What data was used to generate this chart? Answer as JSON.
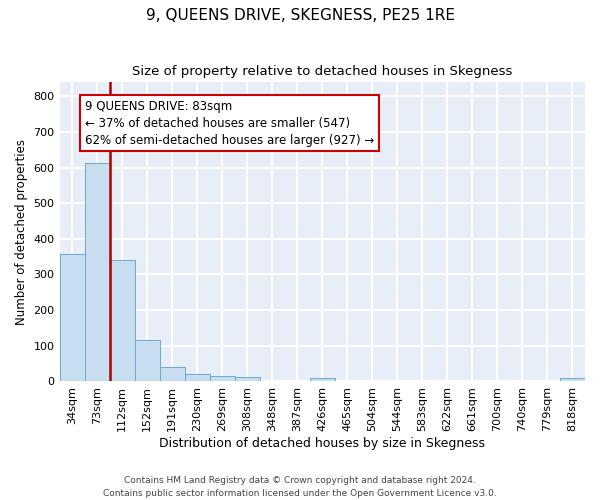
{
  "title": "9, QUEENS DRIVE, SKEGNESS, PE25 1RE",
  "subtitle": "Size of property relative to detached houses in Skegness",
  "xlabel": "Distribution of detached houses by size in Skegness",
  "ylabel": "Number of detached properties",
  "footer_line1": "Contains HM Land Registry data © Crown copyright and database right 2024.",
  "footer_line2": "Contains public sector information licensed under the Open Government Licence v3.0.",
  "bar_labels": [
    "34sqm",
    "73sqm",
    "112sqm",
    "152sqm",
    "191sqm",
    "230sqm",
    "269sqm",
    "308sqm",
    "348sqm",
    "387sqm",
    "426sqm",
    "465sqm",
    "504sqm",
    "544sqm",
    "583sqm",
    "622sqm",
    "661sqm",
    "700sqm",
    "740sqm",
    "779sqm",
    "818sqm"
  ],
  "bar_values": [
    358,
    612,
    342,
    115,
    40,
    22,
    16,
    13,
    0,
    0,
    9,
    0,
    0,
    0,
    0,
    0,
    0,
    0,
    0,
    0,
    9
  ],
  "bar_color": "#c9ddf0",
  "bar_edge_color": "#6aaad4",
  "background_color": "#e8eef8",
  "grid_color": "#ffffff",
  "annotation_line1": "9 QUEENS DRIVE: 83sqm",
  "annotation_line2": "← 37% of detached houses are smaller (547)",
  "annotation_line3": "62% of semi-detached houses are larger (927) →",
  "vline_color": "#aa0000",
  "annotation_box_color": "#ffffff",
  "annotation_box_edge": "#cc0000",
  "ylim": [
    0,
    840
  ],
  "yticks": [
    0,
    100,
    200,
    300,
    400,
    500,
    600,
    700,
    800
  ],
  "title_fontsize": 11,
  "subtitle_fontsize": 9.5,
  "xlabel_fontsize": 9,
  "ylabel_fontsize": 8.5,
  "tick_fontsize": 8,
  "annotation_fontsize": 8.5,
  "vline_x_index": 1.5
}
